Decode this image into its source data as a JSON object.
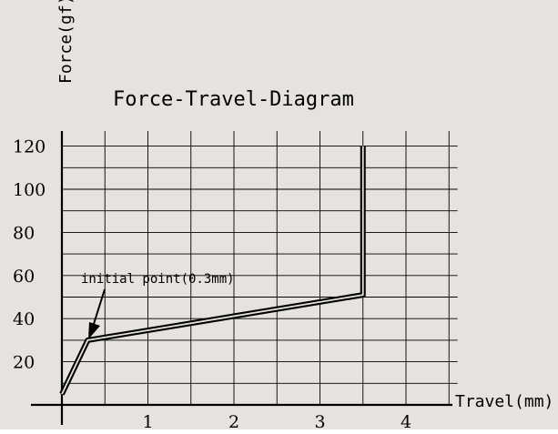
{
  "chart_data": {
    "type": "line",
    "title": "Force-Travel-Diagram",
    "xlabel": "Travel(mm)",
    "ylabel": "Force(gf)",
    "xlim": [
      0,
      4.6
    ],
    "ylim": [
      0,
      127
    ],
    "x_ticks": [
      "1",
      "2",
      "3",
      "4"
    ],
    "y_ticks": [
      "20",
      "40",
      "60",
      "80",
      "100",
      "120"
    ],
    "grid": true,
    "annotation": "initial point(0.3mm)",
    "series": [
      {
        "x": [
          0,
          0.3,
          3.5,
          3.5
        ],
        "y": [
          5,
          30,
          51,
          120
        ]
      }
    ],
    "colors": {
      "background": "#e6e3de",
      "line": "#000000"
    }
  }
}
